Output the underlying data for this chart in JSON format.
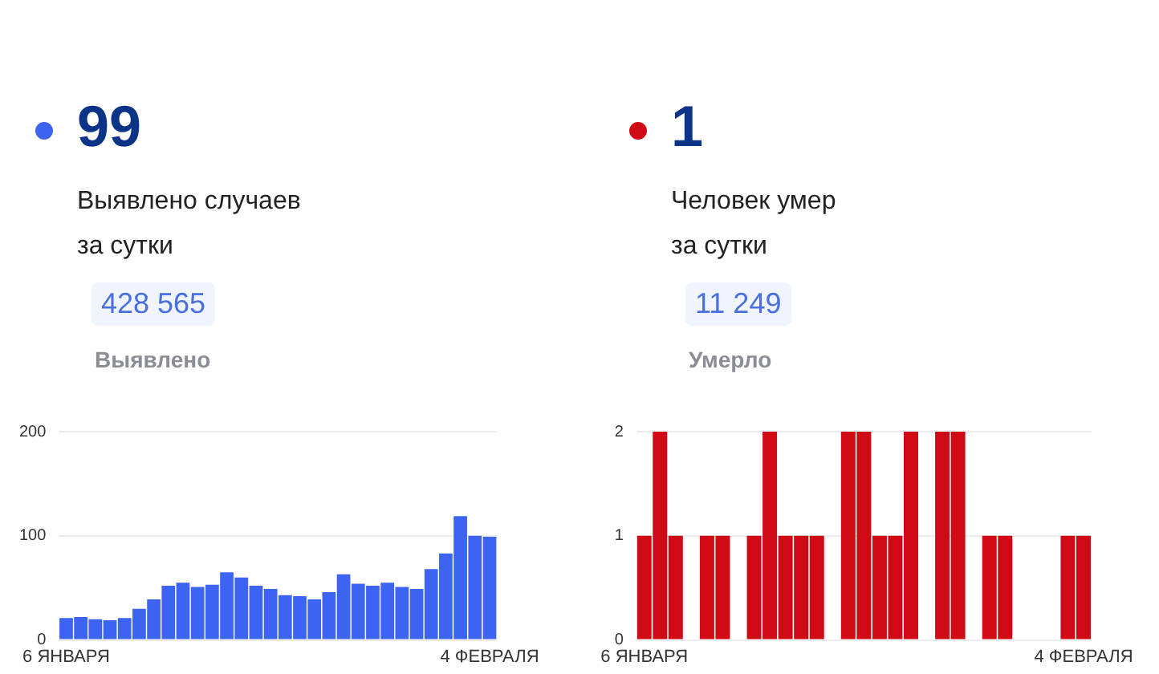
{
  "chart_data": [
    {
      "type": "bar",
      "title": "99",
      "subtitle": "Выявлено случаев\nза сутки",
      "annotations": [
        "428 565",
        "Выявлено"
      ],
      "categories": [
        "6 ЯНВАРЯ",
        null,
        null,
        null,
        null,
        null,
        null,
        null,
        null,
        null,
        null,
        null,
        null,
        null,
        null,
        null,
        null,
        null,
        null,
        null,
        null,
        null,
        null,
        null,
        null,
        null,
        null,
        null,
        null,
        "4 ФЕВРАЛЯ"
      ],
      "series": [
        {
          "color": "#3d63f2",
          "values": [
            21,
            22,
            20,
            19,
            21,
            30,
            39,
            52,
            55,
            51,
            53,
            65,
            60,
            52,
            49,
            43,
            42,
            39,
            46,
            63,
            54,
            52,
            55,
            51,
            49,
            68,
            83,
            119,
            100,
            99
          ]
        }
      ],
      "ylim": [
        0,
        200
      ],
      "yticks": [
        0,
        100,
        200
      ],
      "grid": "y",
      "legend": false
    },
    {
      "type": "bar",
      "title": "1",
      "subtitle": "Человек умер\nза сутки",
      "annotations": [
        "11 249",
        "Умерло"
      ],
      "categories": [
        "6 ЯНВАРЯ",
        null,
        null,
        null,
        null,
        null,
        null,
        null,
        null,
        null,
        null,
        null,
        null,
        null,
        null,
        null,
        null,
        null,
        null,
        null,
        null,
        null,
        null,
        null,
        null,
        null,
        null,
        null,
        "4 ФЕВРАЛЯ"
      ],
      "series": [
        {
          "color": "#cf0a15",
          "values": [
            1,
            2,
            1,
            0,
            1,
            1,
            0,
            1,
            2,
            1,
            1,
            1,
            0,
            2,
            2,
            1,
            1,
            2,
            0,
            2,
            2,
            0,
            1,
            1,
            0,
            0,
            0,
            1,
            1
          ]
        }
      ],
      "ylim": [
        0,
        2
      ],
      "yticks": [
        0,
        1,
        2
      ],
      "grid": "y",
      "legend": false
    }
  ]
}
